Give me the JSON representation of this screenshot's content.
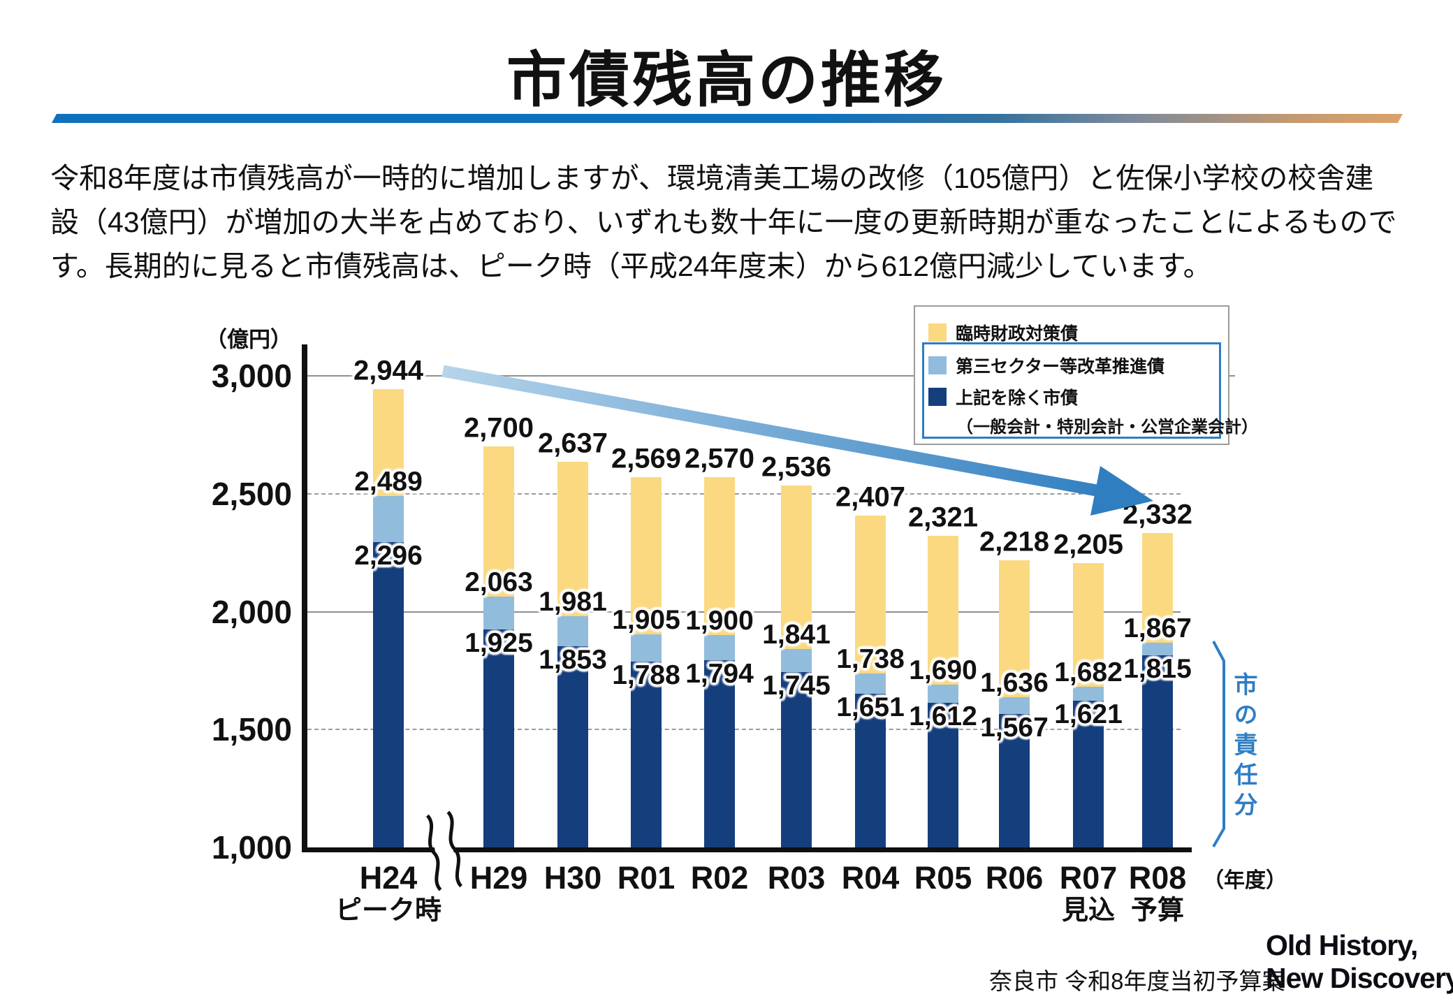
{
  "title": "市債残高の推移",
  "intro": {
    "lines": [
      "令和8年度は市債残高が一時的に増加しますが、環境清美工場の改修（105億円）と佐保小学校の校舎建",
      "設（43億円）が増加の大半を占めており、いずれも数十年に一度の更新時期が重なったことによるもので",
      "す。長期的に見ると市債残高は、ピーク時（平成24年度末）から612億円減少しています。"
    ]
  },
  "chart": {
    "unit_label": "（億円）",
    "year_label": "（年度）"
  },
  "legend": {
    "items": [
      {
        "label": "臨時財政対策債",
        "color": "#fad981"
      },
      {
        "label": "第三セクター等改革推進債",
        "color": "#92bcdc"
      },
      {
        "label": "上記を除く市債",
        "color": "#153e7d"
      },
      {
        "label": "（一般会計・特別会計・公営企業会計）",
        "color": ""
      }
    ]
  },
  "bracket": {
    "label": "市の責任分"
  },
  "footer": {
    "source": "奈良市 令和8年度当初予算案",
    "logo_line1": "Old History,",
    "logo_line2": "New Discovery."
  },
  "chart_data": {
    "type": "bar",
    "stacked": true,
    "title": "市債残高の推移",
    "unit": "億円",
    "categories": [
      "H24",
      "H29",
      "H30",
      "R01",
      "R02",
      "R03",
      "R04",
      "R05",
      "R06",
      "R07",
      "R08"
    ],
    "category_sublabels": [
      "ピーク時",
      "",
      "",
      "",
      "",
      "",
      "",
      "",
      "",
      "見込",
      "予算"
    ],
    "totals": [
      2944,
      2700,
      2637,
      2569,
      2570,
      2536,
      2407,
      2321,
      2218,
      2205,
      2332
    ],
    "cumulative_third_sector_top": [
      2489,
      2063,
      1981,
      1905,
      1900,
      1841,
      1738,
      1690,
      1636,
      1682,
      1867
    ],
    "cumulative_city_bond_top": [
      2296,
      1925,
      1853,
      1788,
      1794,
      1745,
      1651,
      1612,
      1567,
      1621,
      1815
    ],
    "series": [
      {
        "name": "臨時財政対策債",
        "color": "#fad981",
        "values": [
          455,
          637,
          656,
          664,
          670,
          695,
          669,
          631,
          582,
          523,
          465
        ]
      },
      {
        "name": "第三セクター等改革推進債",
        "color": "#92bcdc",
        "values": [
          193,
          138,
          128,
          117,
          106,
          96,
          87,
          78,
          69,
          61,
          52
        ]
      },
      {
        "name": "上記を除く市債（一般会計・特別会計・公営企業会計）",
        "color": "#153e7d",
        "values": [
          2296,
          1925,
          1853,
          1788,
          1794,
          1745,
          1651,
          1612,
          1567,
          1621,
          1815
        ]
      }
    ],
    "ylabel": "億円",
    "xlabel": "年度",
    "ylim": [
      1000,
      3000
    ],
    "y_ticks": [
      3000,
      2500,
      2000,
      1500,
      1000
    ],
    "axis_break_after_first_category": true,
    "grid": "horizontal, alternating solid/dashed",
    "legend_position": "top-right",
    "annotations": {
      "trend_arrow": "downward from H24 peak to R08",
      "bracket_label": "市の責任分"
    }
  }
}
